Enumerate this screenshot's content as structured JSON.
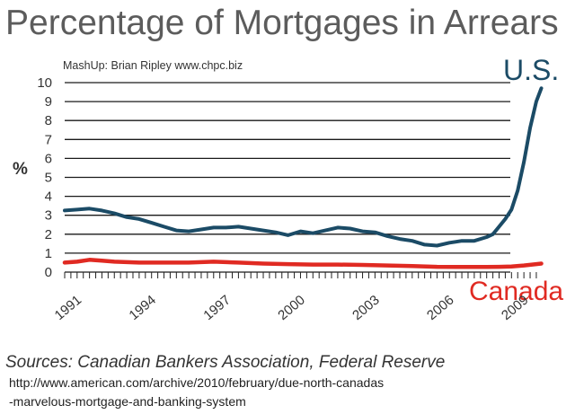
{
  "chart_data": {
    "type": "line",
    "title": "Percentage of Mortgages in Arrears",
    "credit": "MashUp: Brian Ripley www.chpc.biz",
    "ylabel": "%",
    "ylim": [
      0,
      10
    ],
    "xlim": [
      1991,
      2010.4
    ],
    "yticks": [
      "0",
      "1",
      "2",
      "3",
      "4",
      "5",
      "6",
      "7",
      "8",
      "9",
      "10"
    ],
    "xticks": [
      "1991",
      "1994",
      "1997",
      "2000",
      "2003",
      "2006",
      "2009"
    ],
    "grid": "horizontal",
    "series": [
      {
        "name": "U.S.",
        "color": "#1b4b66",
        "x": [
          1991,
          1991.5,
          1992,
          1992.5,
          1993,
          1993.5,
          1994,
          1994.5,
          1995,
          1995.5,
          1996,
          1996.5,
          1997,
          1997.5,
          1998,
          1998.5,
          1999,
          1999.5,
          2000,
          2000.5,
          2001,
          2001.5,
          2002,
          2002.5,
          2003,
          2003.5,
          2004,
          2004.5,
          2005,
          2005.5,
          2006,
          2006.5,
          2007,
          2007.5,
          2008,
          2008.25,
          2008.5,
          2008.75,
          2009,
          2009.25,
          2009.5,
          2009.75,
          2010,
          2010.2
        ],
        "values": [
          3.25,
          3.3,
          3.35,
          3.25,
          3.1,
          2.9,
          2.8,
          2.6,
          2.4,
          2.2,
          2.15,
          2.25,
          2.35,
          2.35,
          2.4,
          2.3,
          2.2,
          2.1,
          1.95,
          2.15,
          2.05,
          2.2,
          2.35,
          2.3,
          2.15,
          2.1,
          1.9,
          1.75,
          1.65,
          1.45,
          1.4,
          1.55,
          1.65,
          1.65,
          1.85,
          2.0,
          2.4,
          2.8,
          3.3,
          4.3,
          5.8,
          7.6,
          9.0,
          9.7
        ]
      },
      {
        "name": "Canada",
        "color": "#e02a22",
        "x": [
          1991,
          1991.5,
          1992,
          1992.5,
          1993,
          1994,
          1995,
          1996,
          1997,
          1998,
          1999,
          2000,
          2001,
          2002,
          2003,
          2004,
          2005,
          2006,
          2007,
          2008,
          2008.5,
          2009,
          2009.5,
          2010,
          2010.2
        ],
        "values": [
          0.5,
          0.55,
          0.65,
          0.6,
          0.55,
          0.5,
          0.5,
          0.5,
          0.55,
          0.5,
          0.45,
          0.42,
          0.4,
          0.4,
          0.38,
          0.35,
          0.32,
          0.28,
          0.27,
          0.27,
          0.28,
          0.3,
          0.35,
          0.42,
          0.45
        ]
      }
    ]
  },
  "sources": "Sources: Canadian Bankers Association, Federal Reserve",
  "url_line1": "http://www.american.com/archive/2010/february/due-north-canadas",
  "url_line2": "-marvelous-mortgage-and-banking-system"
}
